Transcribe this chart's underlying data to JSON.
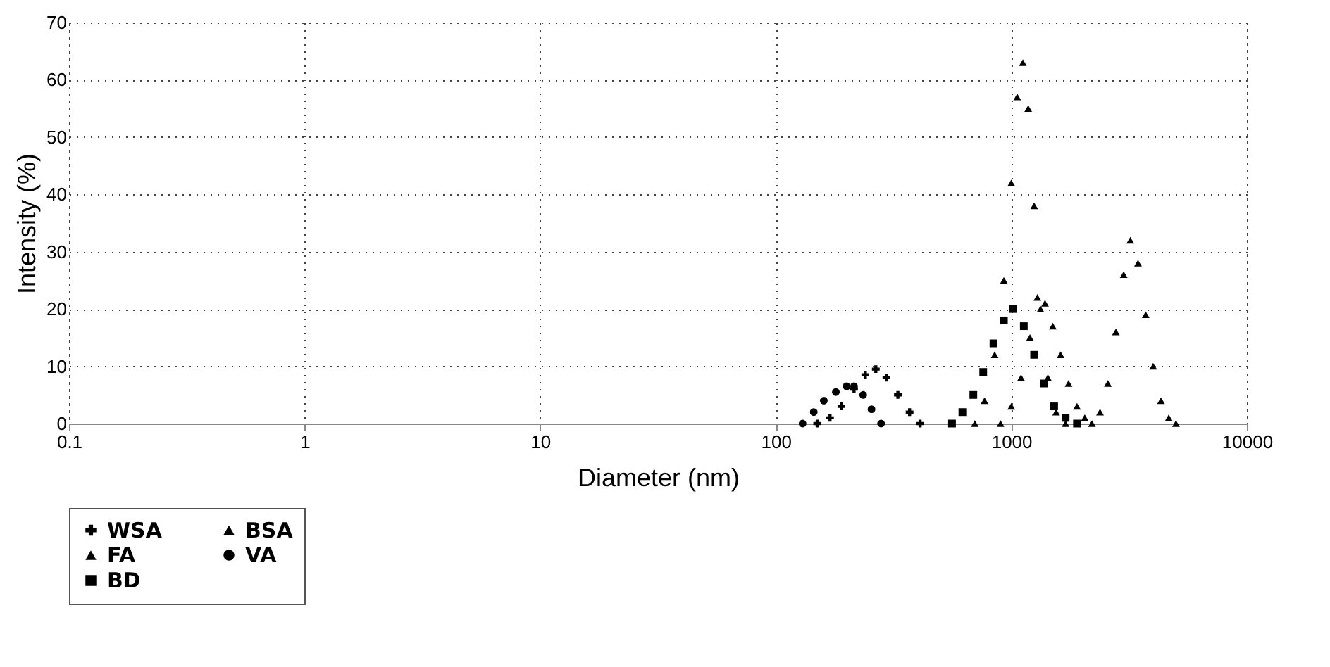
{
  "chart_data": {
    "type": "scatter",
    "xlabel": "Diameter (nm)",
    "ylabel": "Intensity (%)",
    "log": "x",
    "xlim": [
      0.1,
      10000
    ],
    "xticks": [
      0.1,
      1,
      10,
      100,
      1000,
      10000
    ],
    "ylim": [
      0,
      70
    ],
    "yticks": [
      0,
      10,
      20,
      30,
      40,
      50,
      60,
      70
    ],
    "grid": true,
    "line_style": "dotted",
    "legend": "bottom",
    "series": [
      {
        "name": "WSA",
        "color": "#000000",
        "marker": "cross",
        "x": [
          150,
          170,
          190,
          215,
          240,
          266,
          295,
          330,
          370,
          410
        ],
        "values": [
          0,
          1,
          3,
          6,
          8.5,
          9.5,
          8,
          5,
          2,
          0
        ]
      },
      {
        "name": "BSA",
        "color": "#000000",
        "marker": "triangle",
        "x": [
          900,
          1000,
          1100,
          1200,
          1290,
          1390,
          1500,
          1620,
          1750,
          1900,
          2050,
          2200,
          2380,
          2570,
          2780,
          3000,
          3200,
          3450,
          3720,
          4000,
          4320,
          4660,
          5000
        ],
        "values": [
          0,
          3,
          8,
          15,
          22,
          21,
          17,
          12,
          7,
          3,
          1,
          0,
          2,
          7,
          16,
          26,
          32,
          28,
          19,
          10,
          4,
          1,
          0
        ]
      },
      {
        "name": "FA",
        "color": "#000000",
        "marker": "triangle",
        "x": [
          700,
          770,
          850,
          930,
          1000,
          1060,
          1120,
          1180,
          1250,
          1330,
          1430,
          1550,
          1700
        ],
        "values": [
          0,
          4,
          12,
          25,
          42,
          57,
          63,
          55,
          38,
          20,
          8,
          2,
          0
        ]
      },
      {
        "name": "VA",
        "color": "#000000",
        "marker": "circle",
        "x": [
          130,
          145,
          160,
          180,
          200,
          215,
          235,
          255,
          280
        ],
        "values": [
          0,
          2,
          4,
          5.5,
          6.5,
          6.5,
          5,
          2.5,
          0
        ]
      },
      {
        "name": "BD",
        "color": "#000000",
        "marker": "square",
        "x": [
          560,
          620,
          690,
          760,
          840,
          930,
          1020,
          1130,
          1250,
          1380,
          1520,
          1700,
          1900
        ],
        "values": [
          0,
          2,
          5,
          9,
          14,
          18,
          20,
          17,
          12,
          7,
          3,
          1,
          0
        ]
      }
    ]
  }
}
